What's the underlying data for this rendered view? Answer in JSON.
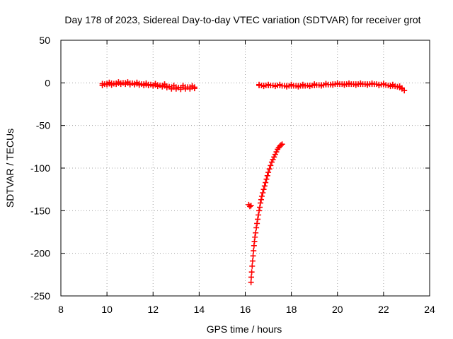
{
  "chart_data": {
    "type": "scatter",
    "title": "Day 178 of 2023, Sidereal Day-to-day VTEC variation (SDTVAR) for receiver grot",
    "xlabel": "GPS time / hours",
    "ylabel": "SDTVAR / TECUs",
    "xlim": [
      8,
      24
    ],
    "ylim": [
      -250,
      50
    ],
    "xticks": [
      8,
      10,
      12,
      14,
      16,
      18,
      20,
      22,
      24
    ],
    "yticks": [
      -250,
      -200,
      -150,
      -100,
      -50,
      0,
      50
    ],
    "grid": true,
    "marker": "+",
    "color": "#ff0000",
    "series": [
      {
        "values": [
          [
            9.8,
            -1
          ],
          [
            9.9,
            -1.5
          ],
          [
            10.0,
            -1
          ],
          [
            10.1,
            -1
          ],
          [
            10.2,
            -0.5
          ],
          [
            10.3,
            -1
          ],
          [
            10.4,
            -0.5
          ],
          [
            10.5,
            -0.5
          ],
          [
            10.6,
            -0.3
          ],
          [
            10.7,
            0
          ],
          [
            10.8,
            0
          ],
          [
            10.9,
            -0.2
          ],
          [
            11.0,
            -0.5
          ],
          [
            11.1,
            -0.5
          ],
          [
            11.2,
            -1
          ],
          [
            11.3,
            -1
          ],
          [
            11.4,
            -1
          ],
          [
            11.5,
            -1.5
          ],
          [
            11.6,
            -1.5
          ],
          [
            11.7,
            -2
          ],
          [
            11.8,
            -2
          ],
          [
            11.9,
            -2
          ],
          [
            12.0,
            -2.5
          ],
          [
            12.1,
            -2.5
          ],
          [
            12.2,
            -2.5
          ],
          [
            12.3,
            -3
          ],
          [
            12.4,
            -3
          ],
          [
            12.5,
            -3.5
          ],
          [
            12.6,
            -4
          ],
          [
            12.7,
            -4.5
          ],
          [
            12.8,
            -5
          ],
          [
            12.9,
            -5
          ],
          [
            13.0,
            -5
          ],
          [
            13.1,
            -5.5
          ],
          [
            13.2,
            -5.5
          ],
          [
            13.3,
            -5
          ],
          [
            13.4,
            -5
          ],
          [
            13.5,
            -5
          ],
          [
            13.6,
            -5
          ],
          [
            13.7,
            -5
          ],
          [
            13.8,
            -5
          ],
          [
            9.8,
            -3
          ],
          [
            10.0,
            -2
          ],
          [
            10.2,
            -2.5
          ],
          [
            10.4,
            -1.5
          ],
          [
            10.6,
            -1.5
          ],
          [
            10.8,
            -1.5
          ],
          [
            11.0,
            -2
          ],
          [
            11.2,
            -2
          ],
          [
            11.4,
            -2.5
          ],
          [
            11.6,
            -3
          ],
          [
            11.8,
            -3
          ],
          [
            12.0,
            -3.5
          ],
          [
            12.2,
            -4
          ],
          [
            12.4,
            -4.5
          ],
          [
            12.6,
            -5.5
          ],
          [
            12.8,
            -7
          ],
          [
            13.0,
            -7
          ],
          [
            13.2,
            -7.5
          ],
          [
            13.4,
            -7
          ],
          [
            13.6,
            -7
          ],
          [
            13.8,
            -6.5
          ],
          [
            10.1,
            0.5
          ],
          [
            10.5,
            1
          ],
          [
            10.9,
            1
          ],
          [
            11.3,
            0.5
          ],
          [
            11.7,
            -0.5
          ],
          [
            12.1,
            -1
          ],
          [
            12.5,
            -1.5
          ],
          [
            12.9,
            -3
          ],
          [
            13.3,
            -3
          ],
          [
            13.7,
            -3.5
          ]
        ]
      },
      {
        "values": [
          [
            16.6,
            -3
          ],
          [
            16.7,
            -3
          ],
          [
            16.8,
            -3
          ],
          [
            16.9,
            -3
          ],
          [
            17.0,
            -3
          ],
          [
            17.1,
            -3
          ],
          [
            17.2,
            -3
          ],
          [
            17.3,
            -3
          ],
          [
            17.4,
            -3
          ],
          [
            17.5,
            -3
          ],
          [
            17.6,
            -3.5
          ],
          [
            17.7,
            -3.5
          ],
          [
            17.8,
            -3.5
          ],
          [
            17.9,
            -3.5
          ],
          [
            18.0,
            -3.5
          ],
          [
            18.1,
            -3.5
          ],
          [
            18.2,
            -3.5
          ],
          [
            18.3,
            -3.5
          ],
          [
            18.4,
            -3.5
          ],
          [
            18.5,
            -3.5
          ],
          [
            18.6,
            -3.5
          ],
          [
            18.7,
            -3
          ],
          [
            18.8,
            -3
          ],
          [
            18.9,
            -3
          ],
          [
            19.0,
            -3
          ],
          [
            19.1,
            -2.5
          ],
          [
            19.2,
            -2.5
          ],
          [
            19.3,
            -2.5
          ],
          [
            19.4,
            -2.5
          ],
          [
            19.5,
            -2
          ],
          [
            19.6,
            -2
          ],
          [
            19.7,
            -2
          ],
          [
            19.8,
            -1.5
          ],
          [
            19.9,
            -1.5
          ],
          [
            20.0,
            -1.5
          ],
          [
            20.1,
            -1.5
          ],
          [
            20.2,
            -1.5
          ],
          [
            20.3,
            -1.5
          ],
          [
            20.4,
            -1.5
          ],
          [
            20.5,
            -1.5
          ],
          [
            20.6,
            -1.5
          ],
          [
            20.7,
            -1.5
          ],
          [
            20.8,
            -1.5
          ],
          [
            20.9,
            -1.5
          ],
          [
            21.0,
            -1.5
          ],
          [
            21.1,
            -1.5
          ],
          [
            21.2,
            -1.5
          ],
          [
            21.3,
            -1.5
          ],
          [
            21.4,
            -1.5
          ],
          [
            21.5,
            -1.5
          ],
          [
            21.6,
            -1.5
          ],
          [
            21.7,
            -1.5
          ],
          [
            21.8,
            -2
          ],
          [
            21.9,
            -2
          ],
          [
            22.0,
            -2
          ],
          [
            22.1,
            -2.5
          ],
          [
            22.2,
            -3
          ],
          [
            22.3,
            -3
          ],
          [
            22.4,
            -3.5
          ],
          [
            22.5,
            -4
          ],
          [
            22.6,
            -4.5
          ],
          [
            22.7,
            -5.5
          ],
          [
            22.8,
            -7
          ],
          [
            22.9,
            -9
          ],
          [
            16.6,
            -2
          ],
          [
            17.0,
            -2
          ],
          [
            17.5,
            -2
          ],
          [
            18.0,
            -2
          ],
          [
            18.5,
            -2
          ],
          [
            19.0,
            -1.5
          ],
          [
            19.5,
            -1
          ],
          [
            20.0,
            -0.5
          ],
          [
            20.5,
            -0.5
          ],
          [
            21.0,
            -0.5
          ],
          [
            21.5,
            -0.5
          ],
          [
            22.0,
            -1
          ],
          [
            22.4,
            -2
          ],
          [
            22.7,
            -4
          ],
          [
            16.8,
            -4
          ],
          [
            17.3,
            -4
          ],
          [
            17.8,
            -4.5
          ],
          [
            18.3,
            -4.5
          ],
          [
            18.8,
            -4
          ],
          [
            19.3,
            -3.5
          ],
          [
            19.8,
            -2.5
          ],
          [
            20.3,
            -2.5
          ],
          [
            20.8,
            -2.5
          ],
          [
            21.3,
            -2.5
          ],
          [
            21.8,
            -3
          ],
          [
            22.3,
            -4
          ],
          [
            22.8,
            -6
          ]
        ]
      },
      {
        "values": [
          [
            16.15,
            -143
          ],
          [
            16.2,
            -145
          ],
          [
            16.25,
            -144
          ],
          [
            16.25,
            -234
          ],
          [
            16.26,
            -228
          ],
          [
            16.28,
            -222
          ],
          [
            16.3,
            -215
          ],
          [
            16.32,
            -209
          ],
          [
            16.34,
            -203
          ],
          [
            16.36,
            -197
          ],
          [
            16.38,
            -191
          ],
          [
            16.4,
            -186
          ],
          [
            16.42,
            -181
          ],
          [
            16.45,
            -176
          ],
          [
            16.48,
            -170
          ],
          [
            16.51,
            -165
          ],
          [
            16.54,
            -160
          ],
          [
            16.57,
            -155
          ],
          [
            16.6,
            -150
          ],
          [
            16.63,
            -146
          ],
          [
            16.66,
            -141
          ],
          [
            16.69,
            -137
          ],
          [
            16.72,
            -133
          ],
          [
            16.76,
            -129
          ],
          [
            16.8,
            -125
          ],
          [
            16.84,
            -121
          ],
          [
            16.88,
            -117
          ],
          [
            16.92,
            -113
          ],
          [
            16.96,
            -109
          ],
          [
            17.0,
            -105
          ],
          [
            17.05,
            -101
          ],
          [
            17.1,
            -97
          ],
          [
            17.15,
            -93
          ],
          [
            17.2,
            -90
          ],
          [
            17.25,
            -87
          ],
          [
            17.3,
            -84
          ],
          [
            17.35,
            -81
          ],
          [
            17.4,
            -78
          ],
          [
            17.45,
            -76
          ],
          [
            17.5,
            -74
          ],
          [
            17.55,
            -73
          ],
          [
            17.6,
            -72
          ]
        ]
      }
    ]
  }
}
